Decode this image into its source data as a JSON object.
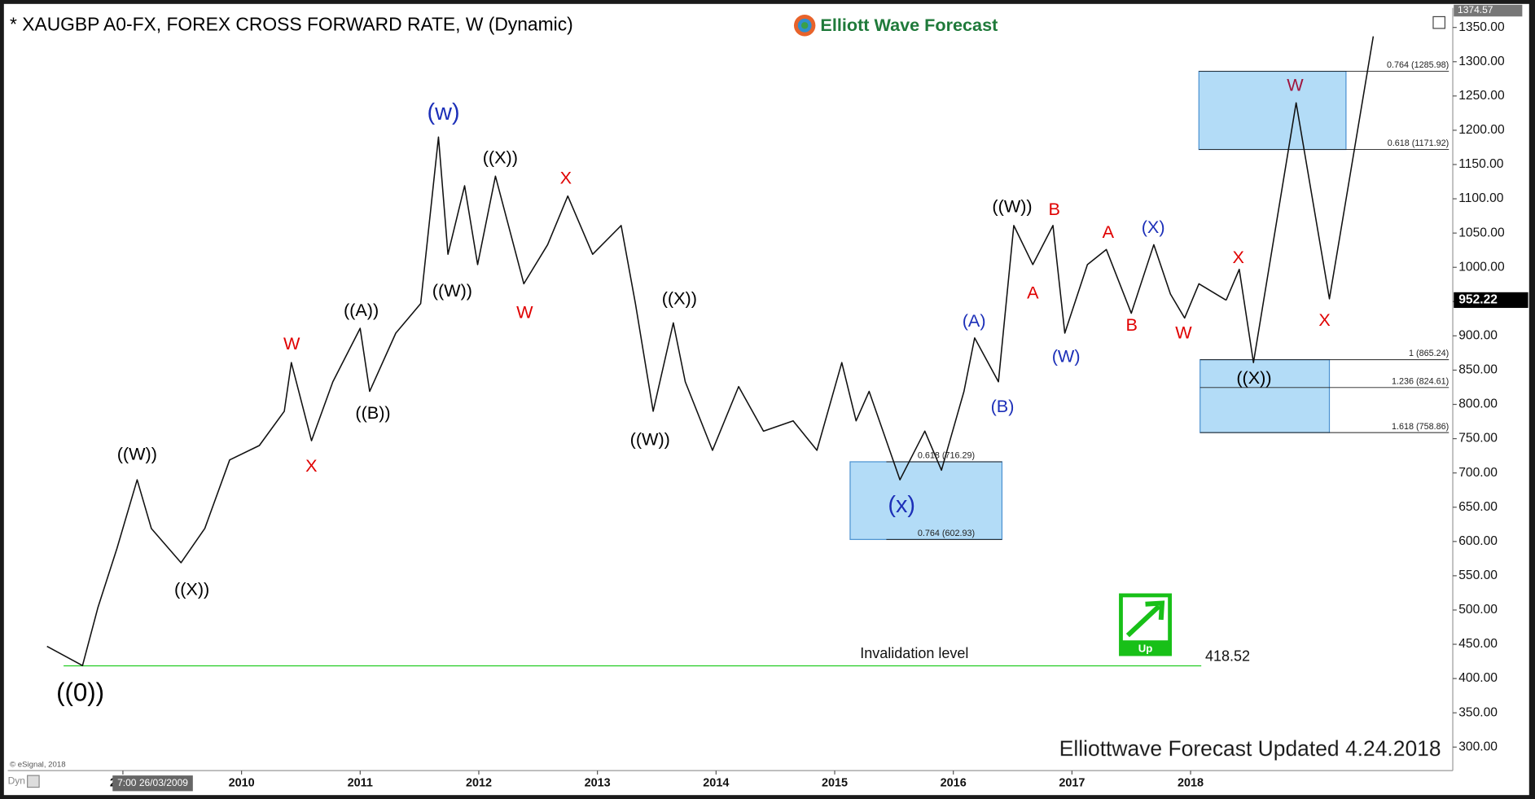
{
  "chart_data": {
    "type": "line",
    "title": "* XAUGBP A0-FX, FOREX CROSS FORWARD RATE, W (Dynamic)",
    "logo": "Elliott Wave Forecast",
    "footer": "Elliottwave Forecast Updated 4.24.2018",
    "copyright": "© eSignal, 2018",
    "dyn": "Dyn",
    "crosshair": "7:00 26/03/2009",
    "icon_label": "Up",
    "grid": false,
    "xlim": [
      2008.03,
      2020.21
    ],
    "ylim": [
      265.7,
      1378.6
    ],
    "xticks": [
      2009,
      2010,
      2011,
      2012,
      2013,
      2014,
      2015,
      2016,
      2017,
      2018
    ],
    "yticks": [
      {
        "value": 300,
        "label": "300.00"
      },
      {
        "value": 350,
        "label": "350.00"
      },
      {
        "value": 400,
        "label": "400.00"
      },
      {
        "value": 450,
        "label": "450.00"
      },
      {
        "value": 500,
        "label": "500.00"
      },
      {
        "value": 550,
        "label": "550.00"
      },
      {
        "value": 600,
        "label": "600.00"
      },
      {
        "value": 650,
        "label": "650.00"
      },
      {
        "value": 700,
        "label": "700.00"
      },
      {
        "value": 750,
        "label": "750.00"
      },
      {
        "value": 800,
        "label": "800.00"
      },
      {
        "value": 850,
        "label": "850.00"
      },
      {
        "value": 900,
        "label": "900.00"
      },
      {
        "value": 950,
        "label": "950.00"
      },
      {
        "value": 1000,
        "label": "1000.00"
      },
      {
        "value": 1050,
        "label": "1050.00"
      },
      {
        "value": 1100,
        "label": "1100.00"
      },
      {
        "value": 1150,
        "label": "1150.00"
      },
      {
        "value": 1200,
        "label": "1200.00"
      },
      {
        "value": 1250,
        "label": "1250.00"
      },
      {
        "value": 1300,
        "label": "1300.00"
      },
      {
        "value": 1350,
        "label": "1350.00"
      }
    ],
    "series": [
      {
        "color": "#111111",
        "x": [
          2008.36,
          2008.66,
          2008.79,
          2008.95,
          2009.12,
          2009.24,
          2009.49,
          2009.69,
          2009.9,
          2010.15,
          2010.36,
          2010.42,
          2010.59,
          2010.77,
          2011.0,
          2011.08,
          2011.3,
          2011.51,
          2011.66,
          2011.74,
          2011.88,
          2011.99,
          2012.14,
          2012.38,
          2012.58,
          2012.75,
          2012.96,
          2013.2,
          2013.32,
          2013.47,
          2013.64,
          2013.74,
          2013.97,
          2014.19,
          2014.4,
          2014.65,
          2014.85,
          2015.06,
          2015.18,
          2015.29,
          2015.55,
          2015.76,
          2015.9,
          2016.09,
          2016.18,
          2016.38,
          2016.51,
          2016.67,
          2016.84,
          2016.94,
          2017.13,
          2017.29,
          2017.5,
          2017.69,
          2017.83,
          2017.95,
          2018.07,
          2018.3
        ],
        "values": [
          447,
          419,
          504,
          590,
          690,
          619,
          569,
          619,
          719,
          740,
          790,
          861,
          747,
          833,
          911,
          819,
          904,
          947,
          1190,
          1019,
          1119,
          1004,
          1133,
          976,
          1033,
          1104,
          1019,
          1061,
          947,
          790,
          919,
          833,
          733,
          826,
          761,
          776,
          733,
          861,
          776,
          819,
          690,
          761,
          704,
          819,
          897,
          833,
          1061,
          1004,
          1061,
          904,
          1004,
          1026,
          933,
          1033,
          961,
          926,
          976,
          952
        ]
      },
      {
        "color": "#111111",
        "x": [
          2018.3,
          2018.41,
          2018.53,
          2018.89,
          2019.17,
          2019.54
        ],
        "values": [
          952,
          997,
          861,
          1240,
          954,
          1337
        ]
      }
    ],
    "last_price": {
      "value": 952.22,
      "label": "952.22"
    },
    "top_price": {
      "value": 1374.57,
      "label": "1374.57"
    },
    "invalidation": {
      "value": 418.52,
      "label": "418.52",
      "text": "Invalidation level",
      "color": "#22cc22"
    },
    "fib_zones": [
      {
        "x": [
          2015.13,
          2016.41
        ],
        "color": "#b3dcf7",
        "levels": [
          {
            "value": 716.29,
            "label": "0.618 (716.29)"
          },
          {
            "value": 602.93,
            "label": "0.764 (602.93)"
          }
        ]
      },
      {
        "x": [
          2018.07,
          2019.31
        ],
        "color": "#b3dcf7",
        "levels": [
          {
            "value": 1285.98,
            "label": "0.764 (1285.98)"
          },
          {
            "value": 1171.92,
            "label": "0.618 (1171.92)"
          }
        ]
      },
      {
        "x": [
          2018.08,
          2019.17
        ],
        "color": "#b3dcf7",
        "levels": [
          {
            "value": 865.24,
            "label": "1 (865.24)"
          },
          {
            "value": 824.61,
            "label": "1.236 (824.61)"
          },
          {
            "value": 758.86,
            "label": "1.618 (758.86)"
          }
        ]
      }
    ],
    "wave_labels": [
      {
        "text": "((0))",
        "color": "#000000"
      },
      {
        "text": "((W))",
        "color": "#000000"
      },
      {
        "text": "((X))",
        "color": "#000000"
      },
      {
        "text": "W",
        "color": "#e00000"
      },
      {
        "text": "X",
        "color": "#e00000"
      },
      {
        "text": "((A))",
        "color": "#000000"
      },
      {
        "text": "((B))",
        "color": "#000000"
      },
      {
        "text": "((W))",
        "color": "#000000"
      },
      {
        "text": "(w)",
        "color": "#1c2fb8"
      },
      {
        "text": "((X))",
        "color": "#000000"
      },
      {
        "text": "X",
        "color": "#e00000"
      },
      {
        "text": "W",
        "color": "#e00000"
      },
      {
        "text": "((X))",
        "color": "#000000"
      },
      {
        "text": "((W))",
        "color": "#000000"
      },
      {
        "text": "(x)",
        "color": "#1c2fb8"
      },
      {
        "text": "(A)",
        "color": "#1c2fb8"
      },
      {
        "text": "(B)",
        "color": "#1c2fb8"
      },
      {
        "text": "((W))",
        "color": "#000000"
      },
      {
        "text": "A",
        "color": "#e00000"
      },
      {
        "text": "B",
        "color": "#e00000"
      },
      {
        "text": "(W)",
        "color": "#1c2fb8"
      },
      {
        "text": "A",
        "color": "#e00000"
      },
      {
        "text": "B",
        "color": "#e00000"
      },
      {
        "text": "(X)",
        "color": "#1c2fb8"
      },
      {
        "text": "W",
        "color": "#e00000"
      },
      {
        "text": "X",
        "color": "#e00000"
      },
      {
        "text": "((X))",
        "color": "#000000"
      },
      {
        "text": "W",
        "color": "#a0153e"
      },
      {
        "text": "X",
        "color": "#e00000"
      }
    ]
  }
}
